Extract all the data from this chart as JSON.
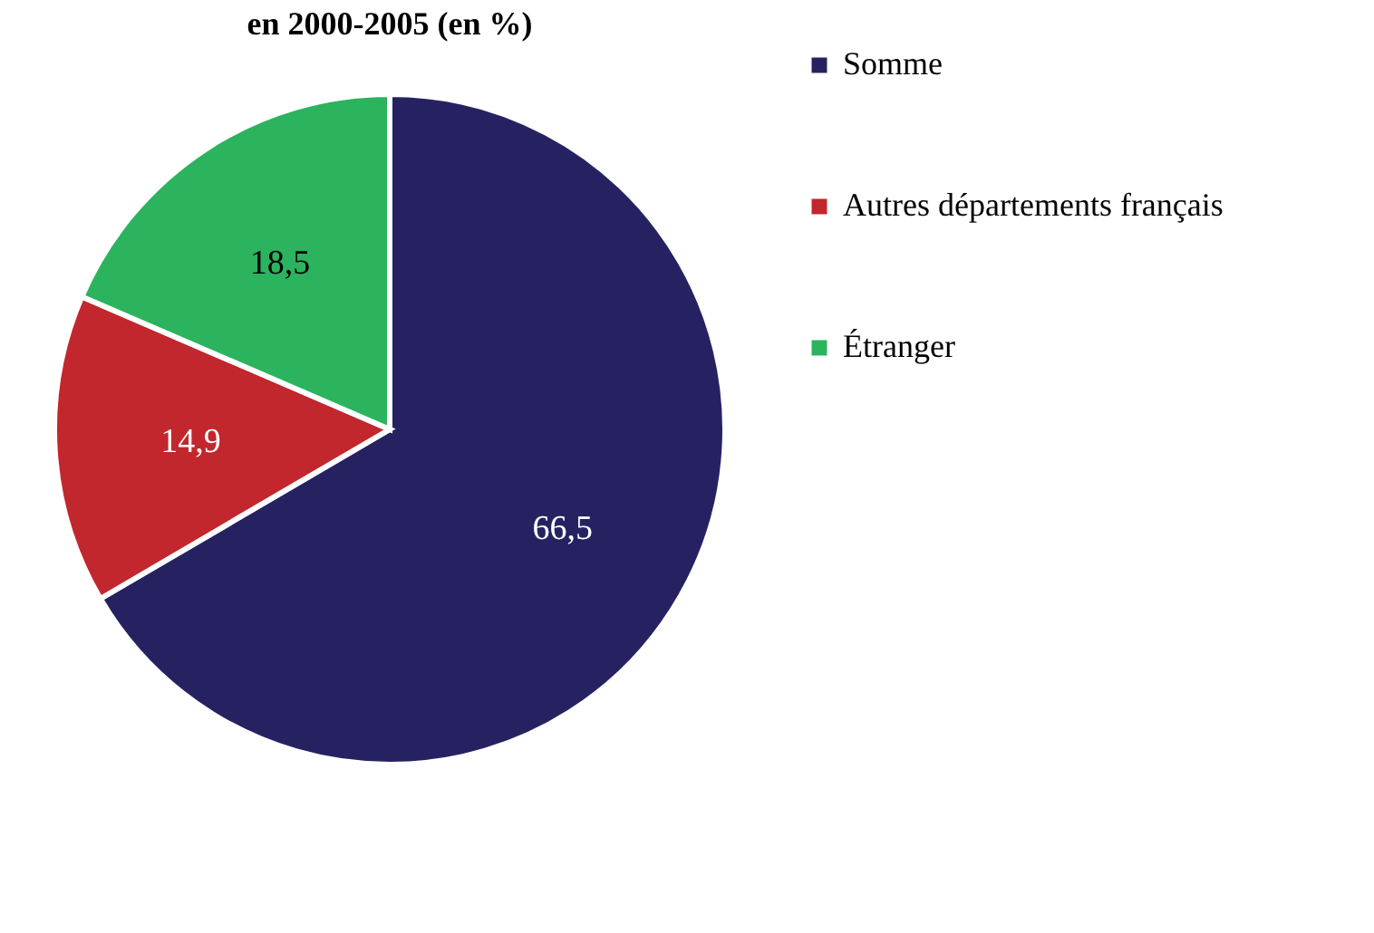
{
  "chart_data": {
    "type": "pie",
    "title": "en 2000-2005 (en %)",
    "categories": [
      "Somme",
      "Autres départements français",
      "Étranger"
    ],
    "values": [
      66.5,
      14.9,
      18.5
    ],
    "colors": [
      "#262262",
      "#c1272d",
      "#2bb35e"
    ],
    "value_labels": [
      "66,5",
      "14,9",
      "18,5"
    ],
    "legend": "right"
  }
}
